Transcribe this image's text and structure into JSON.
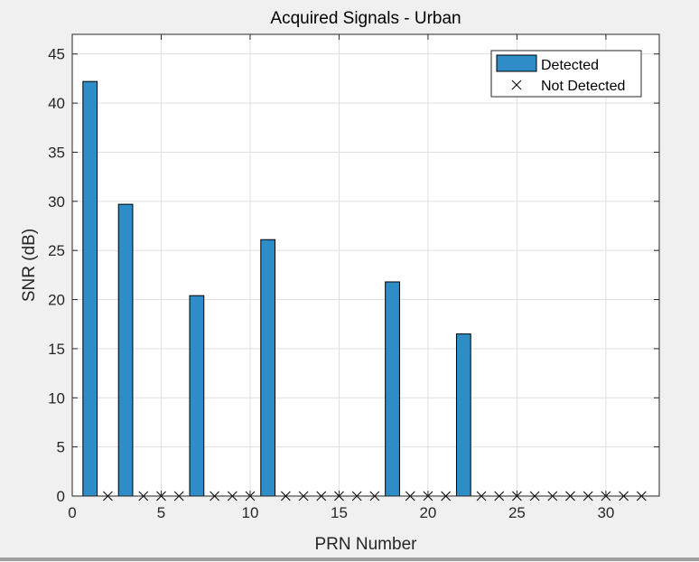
{
  "chart_data": {
    "type": "bar",
    "title": "Acquired Signals - Urban",
    "xlabel": "PRN Number",
    "ylabel": "SNR (dB)",
    "xlim": [
      0,
      33
    ],
    "ylim": [
      0,
      47
    ],
    "xticks": [
      0,
      5,
      10,
      15,
      20,
      25,
      30
    ],
    "yticks": [
      0,
      5,
      10,
      15,
      20,
      25,
      30,
      35,
      40,
      45
    ],
    "grid": true,
    "legend_position": "top-right",
    "series": [
      {
        "name": "Detected",
        "type": "bar",
        "color": "#2e8cc6",
        "x": [
          1,
          3,
          7,
          11,
          18,
          22
        ],
        "values": [
          42.2,
          29.7,
          20.4,
          26.1,
          21.8,
          16.5
        ]
      },
      {
        "name": "Not Detected",
        "type": "marker",
        "marker": "x",
        "color": "#000000",
        "x": [
          2,
          4,
          5,
          6,
          8,
          9,
          10,
          12,
          13,
          14,
          15,
          16,
          17,
          19,
          20,
          21,
          23,
          24,
          25,
          26,
          27,
          28,
          29,
          30,
          31,
          32
        ],
        "values": [
          0,
          0,
          0,
          0,
          0,
          0,
          0,
          0,
          0,
          0,
          0,
          0,
          0,
          0,
          0,
          0,
          0,
          0,
          0,
          0,
          0,
          0,
          0,
          0,
          0,
          0
        ]
      }
    ]
  }
}
